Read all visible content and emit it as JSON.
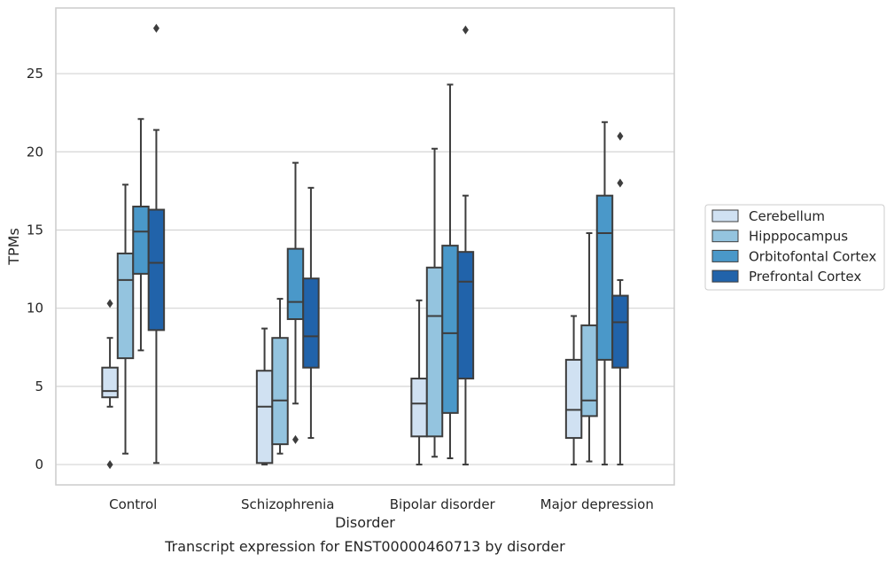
{
  "chart_data": {
    "type": "box",
    "caption": "Transcript expression for ENST00000460713 by disorder",
    "xlabel": "Disorder",
    "ylabel": "TPMs",
    "ylim": [
      -1.3,
      29.2
    ],
    "yticks": [
      0,
      5,
      10,
      15,
      20,
      25
    ],
    "grid": "horizontal",
    "legend_position": "right",
    "categories": [
      "Control",
      "Schizophrenia",
      "Bipolar disorder",
      "Major depression"
    ],
    "series": [
      {
        "name": "Cerebellum",
        "color": "#d0e1f2",
        "boxes": [
          {
            "whislo": 3.7,
            "q1": 4.3,
            "med": 4.7,
            "q3": 6.2,
            "whishi": 8.1,
            "fliers": [
              0.0,
              10.3
            ]
          },
          {
            "whislo": 0.0,
            "q1": 0.1,
            "med": 3.7,
            "q3": 6.0,
            "whishi": 8.7,
            "fliers": []
          },
          {
            "whislo": 0.0,
            "q1": 1.8,
            "med": 3.9,
            "q3": 5.5,
            "whishi": 10.5,
            "fliers": []
          },
          {
            "whislo": 0.0,
            "q1": 1.7,
            "med": 3.5,
            "q3": 6.7,
            "whishi": 9.5,
            "fliers": []
          }
        ]
      },
      {
        "name": "Hipppocampus",
        "color": "#94c4df",
        "boxes": [
          {
            "whislo": 0.7,
            "q1": 6.8,
            "med": 11.8,
            "q3": 13.5,
            "whishi": 17.9,
            "fliers": []
          },
          {
            "whislo": 0.7,
            "q1": 1.3,
            "med": 4.1,
            "q3": 8.1,
            "whishi": 10.6,
            "fliers": []
          },
          {
            "whislo": 0.5,
            "q1": 1.8,
            "med": 9.5,
            "q3": 12.6,
            "whishi": 20.2,
            "fliers": []
          },
          {
            "whislo": 0.2,
            "q1": 3.1,
            "med": 4.1,
            "q3": 8.9,
            "whishi": 14.8,
            "fliers": []
          }
        ]
      },
      {
        "name": "Orbitofontal Cortex",
        "color": "#4a98c9",
        "boxes": [
          {
            "whislo": 7.3,
            "q1": 12.2,
            "med": 14.9,
            "q3": 16.5,
            "whishi": 22.1,
            "fliers": []
          },
          {
            "whislo": 3.9,
            "q1": 9.3,
            "med": 10.4,
            "q3": 13.8,
            "whishi": 19.3,
            "fliers": [
              1.6
            ]
          },
          {
            "whislo": 0.4,
            "q1": 3.3,
            "med": 8.4,
            "q3": 14.0,
            "whishi": 24.3,
            "fliers": []
          },
          {
            "whislo": 0.0,
            "q1": 6.7,
            "med": 14.8,
            "q3": 17.2,
            "whishi": 21.9,
            "fliers": []
          }
        ]
      },
      {
        "name": "Prefrontal Cortex",
        "color": "#2163aa",
        "boxes": [
          {
            "whislo": 0.1,
            "q1": 8.6,
            "med": 12.9,
            "q3": 16.3,
            "whishi": 21.4,
            "fliers": [
              27.9
            ]
          },
          {
            "whislo": 1.7,
            "q1": 6.2,
            "med": 8.2,
            "q3": 11.9,
            "whishi": 17.7,
            "fliers": []
          },
          {
            "whislo": 0.0,
            "q1": 5.5,
            "med": 11.7,
            "q3": 13.6,
            "whishi": 17.2,
            "fliers": [
              27.8
            ]
          },
          {
            "whislo": 0.0,
            "q1": 6.2,
            "med": 9.1,
            "q3": 10.8,
            "whishi": 11.8,
            "fliers": [
              18.0,
              21.0
            ]
          }
        ]
      }
    ]
  }
}
